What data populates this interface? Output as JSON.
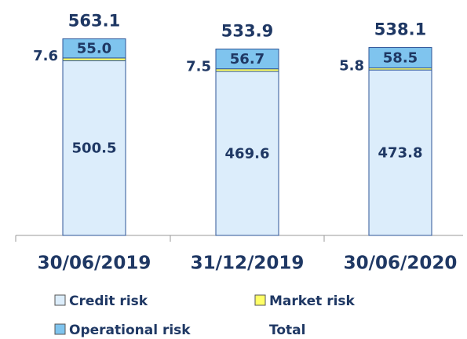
{
  "chart_data": {
    "type": "stacked_bar",
    "categories": [
      "30/06/2019",
      "31/12/2019",
      "30/06/2020"
    ],
    "series": [
      {
        "name": "Credit risk",
        "color": "#dcedfb",
        "values": [
          500.5,
          469.6,
          473.8
        ]
      },
      {
        "name": "Market risk",
        "color": "#ffff66",
        "values": [
          7.6,
          7.5,
          5.8
        ]
      },
      {
        "name": "Operational risk",
        "color": "#7fc4ee",
        "values": [
          55.0,
          56.7,
          58.5
        ],
        "value_labels": [
          "55.0",
          "56.7",
          "58.5"
        ]
      }
    ],
    "totals": {
      "name": "Total",
      "values": [
        563.1,
        533.9,
        538.1
      ]
    },
    "ylim": [
      0,
      600
    ]
  }
}
